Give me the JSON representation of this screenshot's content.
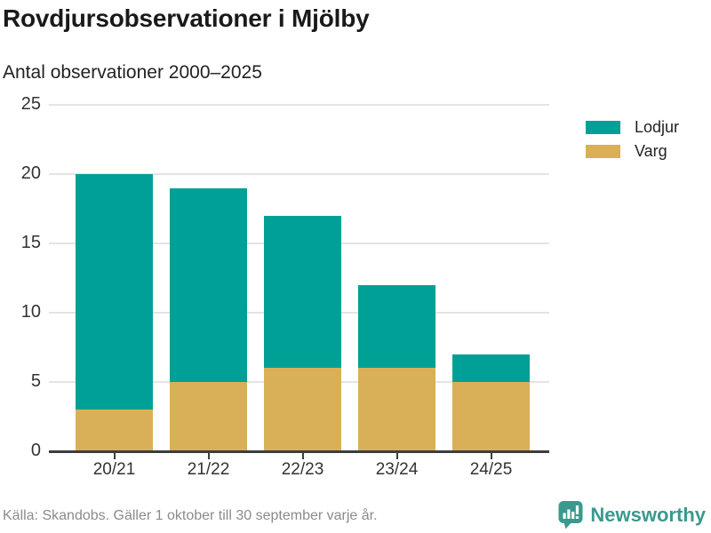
{
  "title": "Rovdjursobservationer i Mjölby",
  "subtitle": "Antal observationer 2000–2025",
  "source": "Källa: Skandobs. Gäller 1 oktober till 30 september varje år.",
  "branding": {
    "name": "Newsworthy",
    "icon": "bar-chart-speech-bubble-icon",
    "color": "#3a998e"
  },
  "colors": {
    "lodjur": "#00a096",
    "varg": "#d9b057",
    "grid": "#e4e4e4",
    "axis": "#3d3d3d"
  },
  "chart_data": {
    "type": "bar",
    "stacked": true,
    "title": "Rovdjursobservationer i Mjölby",
    "subtitle": "Antal observationer 2000–2025",
    "categories": [
      "20/21",
      "21/22",
      "22/23",
      "23/24",
      "24/25"
    ],
    "series": [
      {
        "name": "Lodjur",
        "color": "#00a096",
        "values": [
          17,
          14,
          11,
          6,
          2
        ]
      },
      {
        "name": "Varg",
        "color": "#d9b057",
        "values": [
          3,
          5,
          6,
          6,
          5
        ]
      }
    ],
    "totals": [
      20,
      19,
      17,
      12,
      7
    ],
    "xlabel": "",
    "ylabel": "Antal observationer",
    "y_ticks": [
      0,
      5,
      10,
      15,
      20,
      25
    ],
    "ylim": [
      0,
      25
    ],
    "grid": "horizontal",
    "legend_position": "top-right"
  }
}
